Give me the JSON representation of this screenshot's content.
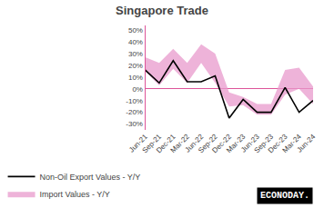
{
  "chart_data": {
    "type": "line",
    "title": "Singapore Trade",
    "categories": [
      "Jun-21",
      "Sep-21",
      "Dec-21",
      "Mar-22",
      "Jun-22",
      "Sep-22",
      "Dec-22",
      "Mar-23",
      "Jun-23",
      "Sep-23",
      "Dec-23",
      "Mar-24",
      "Jun-24"
    ],
    "series": [
      {
        "name": "Import Values - Y/Y",
        "type": "band",
        "color": "#e899cc",
        "upper": [
          27,
          22,
          34,
          22,
          38,
          30,
          -3,
          -7,
          -13,
          -13,
          16,
          18,
          2
        ],
        "lower": [
          15,
          3,
          17,
          5,
          22,
          5,
          -15,
          -14,
          -22,
          -22,
          -5,
          0,
          -13
        ]
      },
      {
        "name": "Non-Oil Export Values - Y/Y",
        "type": "line",
        "color": "#000000",
        "values": [
          16,
          5,
          24,
          6,
          6,
          11,
          -25,
          -9,
          -20,
          -20,
          1,
          -20,
          -10
        ]
      }
    ],
    "ylim": [
      -35,
      54
    ],
    "yticks": [
      {
        "value": -30,
        "label": "-30%"
      },
      {
        "value": -20,
        "label": "-20%"
      },
      {
        "value": -10,
        "label": "-10%"
      },
      {
        "value": 0,
        "label": "0%"
      },
      {
        "value": 10,
        "label": "10%"
      },
      {
        "value": 20,
        "label": "20%"
      },
      {
        "value": 30,
        "label": "30%"
      },
      {
        "value": 40,
        "label": "40%"
      },
      {
        "value": 50,
        "label": "50%"
      }
    ],
    "grid": false,
    "legend": "bottom left",
    "annotations": [
      "ECONODAY."
    ]
  }
}
